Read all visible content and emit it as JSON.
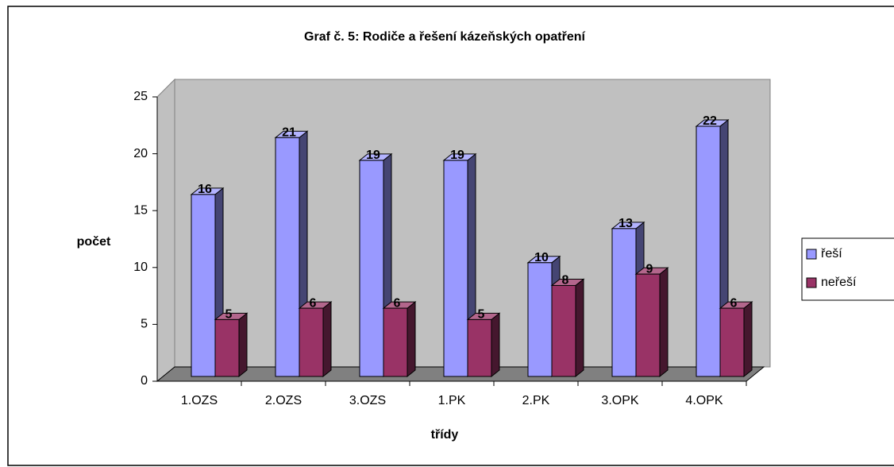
{
  "chart_data": {
    "type": "bar3d",
    "title": "Graf č. 5: Rodiče a řešení kázeňských opatření",
    "x_label": "třídy",
    "y_label": "počet",
    "categories": [
      "1.OZS",
      "2.OZS",
      "3.OZS",
      "1.PK",
      "2.PK",
      "3.OPK",
      "4.OPK"
    ],
    "series": [
      {
        "name": "řeší",
        "color": "#9999ff",
        "values": [
          16,
          21,
          19,
          19,
          10,
          13,
          22
        ]
      },
      {
        "name": "neřeší",
        "color": "#993366",
        "values": [
          5,
          6,
          6,
          5,
          8,
          9,
          6
        ]
      }
    ],
    "ylim": [
      0,
      25
    ],
    "yticks": [
      0,
      5,
      10,
      15,
      20,
      25
    ],
    "legend": "right"
  }
}
